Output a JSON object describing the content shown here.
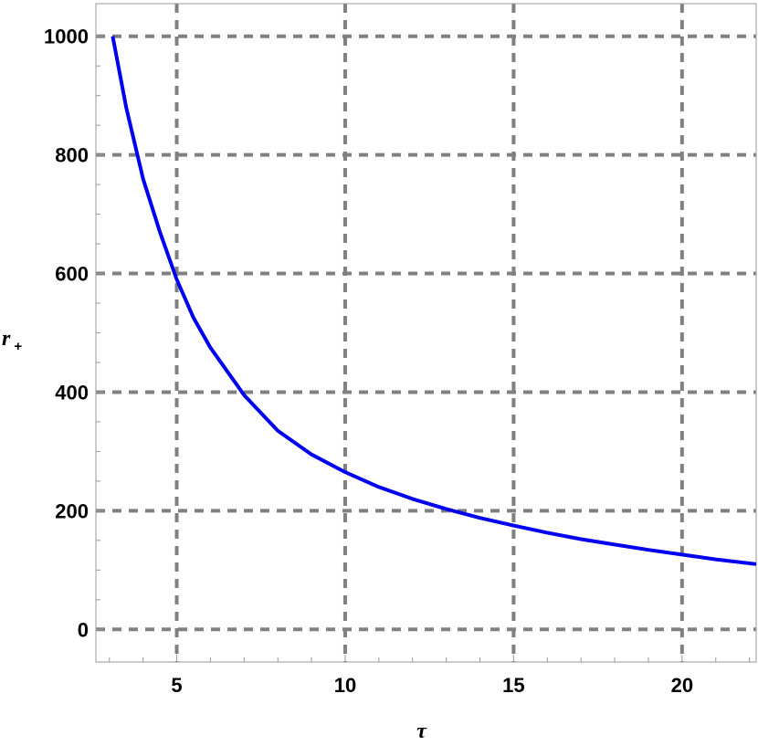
{
  "chart_data": {
    "type": "line",
    "title": "",
    "xlabel": "τ",
    "ylabel_main": "r",
    "ylabel_sub": "+",
    "xlim": [
      2.6,
      22.2
    ],
    "ylim": [
      -55,
      1055
    ],
    "x_ticks": [
      5,
      10,
      15,
      20
    ],
    "x_tick_labels": [
      "5",
      "10",
      "15",
      "20"
    ],
    "y_ticks": [
      0,
      200,
      400,
      600,
      800,
      1000
    ],
    "y_tick_labels": [
      "0",
      "200",
      "400",
      "600",
      "800",
      "1000"
    ],
    "grid": true,
    "grid_style": "dashed",
    "series": [
      {
        "color": "#0000ee",
        "x": [
          3.1,
          3.5,
          4,
          4.5,
          5,
          5.5,
          6,
          7,
          8,
          9,
          10,
          11,
          12,
          13,
          14,
          15,
          16,
          17,
          18,
          19,
          20,
          21,
          22.2
        ],
        "y": [
          1000,
          880,
          760,
          670,
          590,
          525,
          475,
          395,
          335,
          295,
          265,
          240,
          220,
          203,
          188,
          175,
          163,
          152,
          143,
          134,
          126,
          118,
          110
        ]
      }
    ]
  }
}
